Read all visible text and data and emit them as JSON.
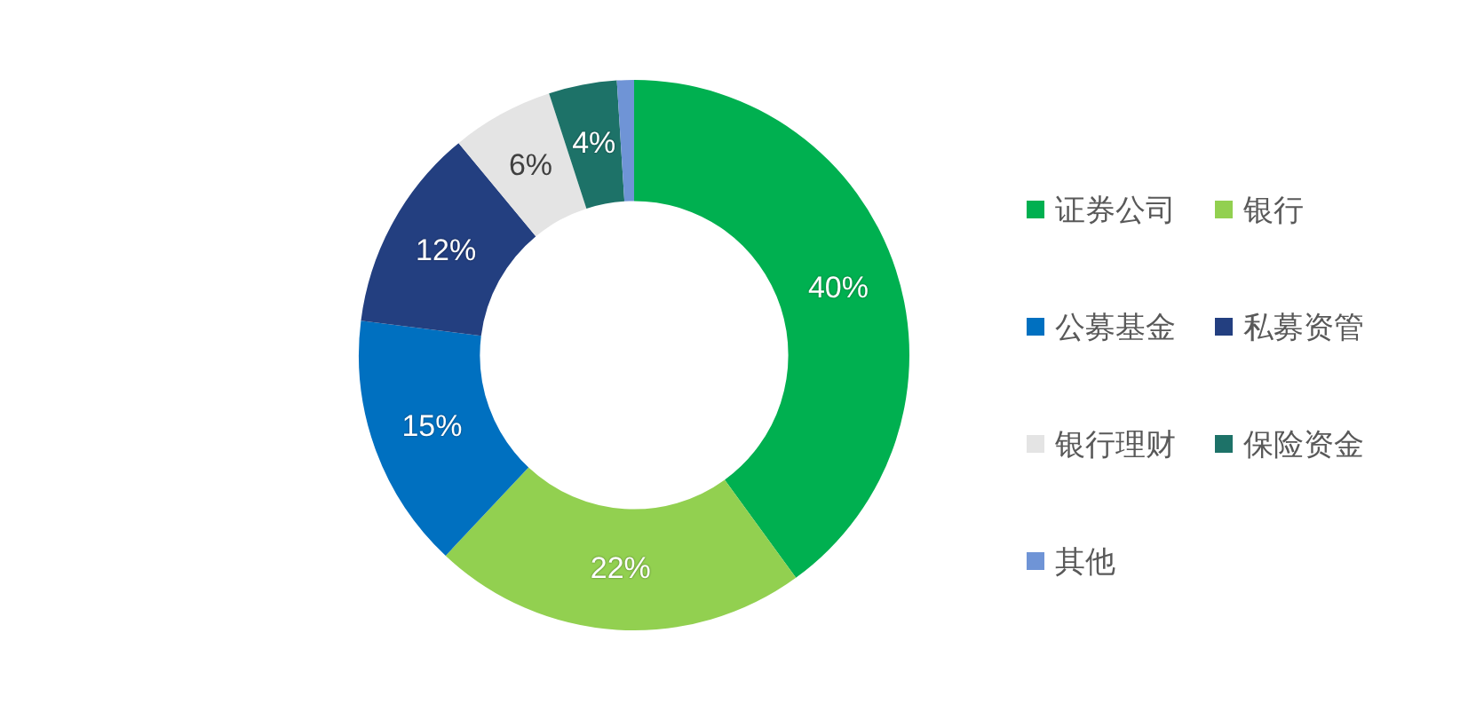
{
  "chart_data": {
    "type": "donut",
    "categories": [
      "证券公司",
      "银行",
      "公募基金",
      "私募资管",
      "银行理财",
      "保险资金",
      "其他"
    ],
    "values": [
      40,
      22,
      15,
      12,
      6,
      4,
      1
    ],
    "colors": [
      "#00b050",
      "#92d050",
      "#0070c0",
      "#233f80",
      "#e4e4e4",
      "#1d7268",
      "#6f94d6"
    ],
    "value_labels": [
      "40%",
      "22%",
      "15%",
      "12%",
      "6%",
      "4%",
      null
    ],
    "legend": "right"
  }
}
